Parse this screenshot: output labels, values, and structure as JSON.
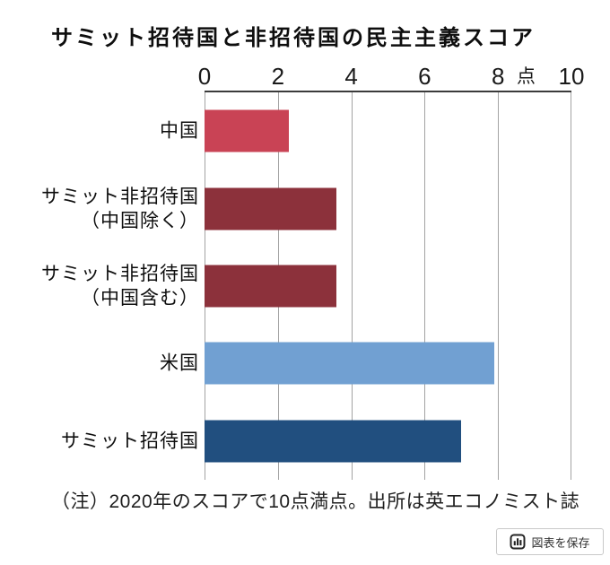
{
  "title": "サミット招待国と非招待国の民主主義スコア",
  "note": "（注）2020年のスコアで10点満点。出所は英エコノミスト誌",
  "save_button": {
    "label": "図表を保存",
    "icon": "bar-chart-icon"
  },
  "colors": {
    "china_bar": "#c94355",
    "non_invited_bar": "#8c313b",
    "usa_bar": "#71a0d2",
    "invited_bar": "#214f7f",
    "gridline": "#a3a3a3",
    "axis_line": "#3b3b3b"
  },
  "chart_data": {
    "type": "bar",
    "orientation": "horizontal",
    "title": "サミット招待国と非招待国の民主主義スコア",
    "xlabel": "",
    "ylabel": "",
    "unit_label": "点",
    "axis": {
      "min": 0,
      "max": 10,
      "ticks": [
        0,
        2,
        4,
        6,
        8,
        10
      ],
      "position": "top",
      "grid": true
    },
    "categories": [
      "中国",
      "サミット非招待国（中国除く）",
      "サミット非招待国（中国含む）",
      "米国",
      "サミット招待国"
    ],
    "values": [
      2.3,
      3.6,
      3.6,
      7.9,
      7.0
    ],
    "bars": [
      {
        "label_lines": [
          "中国"
        ],
        "value": 2.3,
        "color": "#c94355"
      },
      {
        "label_lines": [
          "サミット非招待国",
          "（中国除く）"
        ],
        "value": 3.6,
        "color": "#8c313b"
      },
      {
        "label_lines": [
          "サミット非招待国",
          "（中国含む）"
        ],
        "value": 3.6,
        "color": "#8c313b"
      },
      {
        "label_lines": [
          "米国"
        ],
        "value": 7.9,
        "color": "#71a0d2"
      },
      {
        "label_lines": [
          "サミット招待国"
        ],
        "value": 7.0,
        "color": "#214f7f"
      }
    ],
    "note": "（注）2020年のスコアで10点満点。出所は英エコノミスト誌"
  }
}
